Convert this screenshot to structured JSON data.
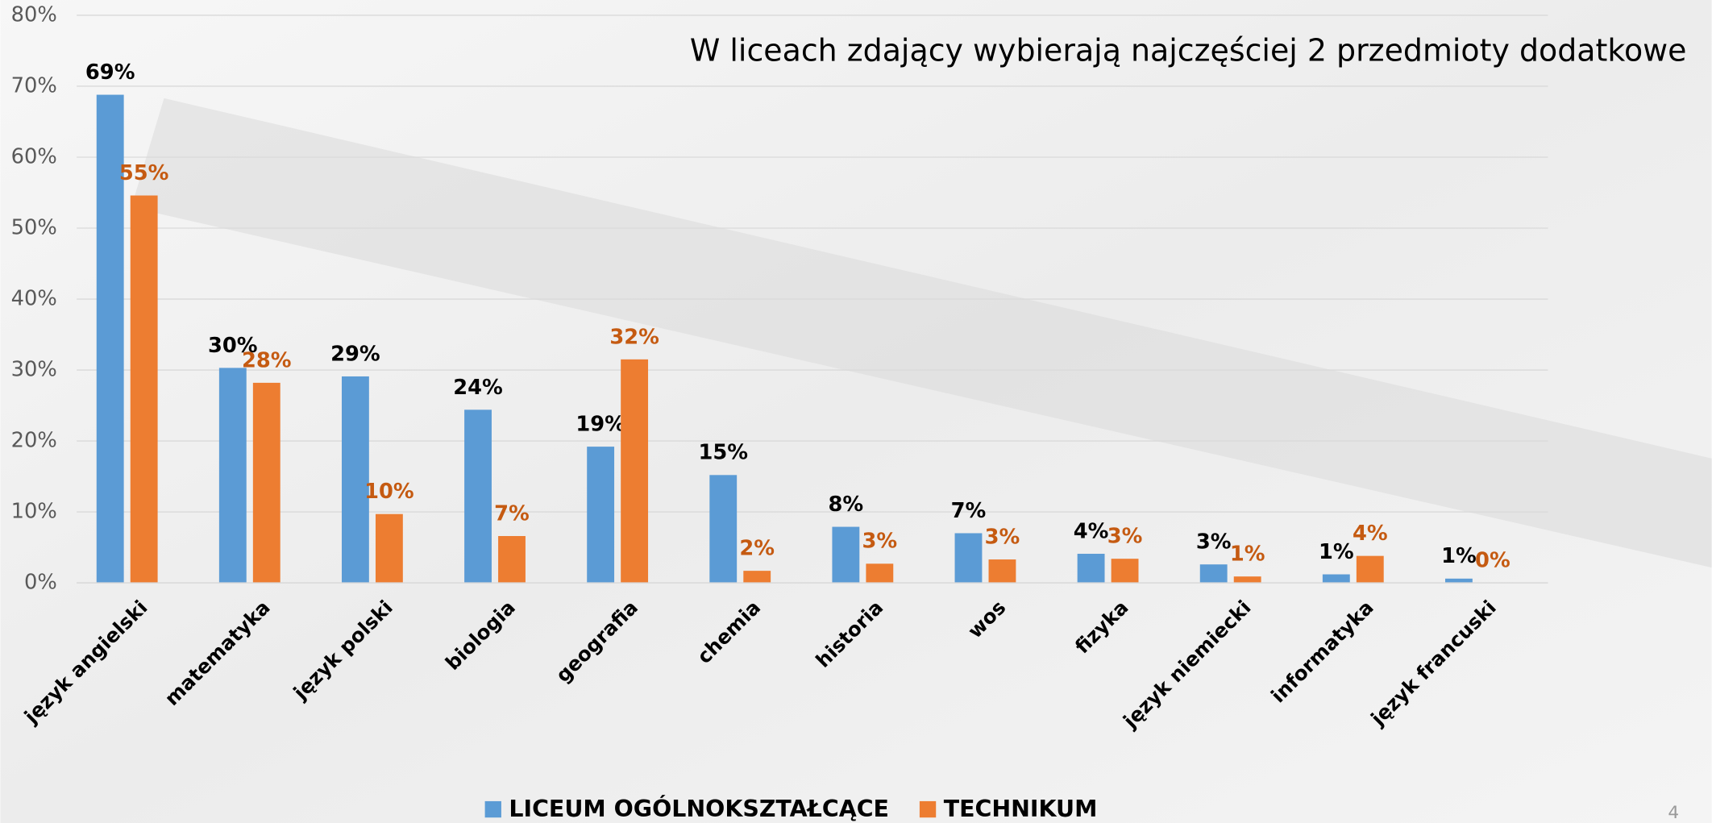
{
  "chart_data": {
    "type": "bar",
    "title": "W liceach zdający wybierają najczęściej 2 przedmioty dodatkowe",
    "categories": [
      "język angielski",
      "matematyka",
      "język polski",
      "biologia",
      "geografia",
      "chemia",
      "historia",
      "wos",
      "fizyka",
      "język niemiecki",
      "informatyka",
      "język francuski"
    ],
    "series": [
      {
        "name": "LICEUM OGÓLNOKSZTAŁCĄCE",
        "color": "#5b9bd5",
        "label_color": "#000000",
        "values": [
          68.8,
          30.3,
          29.1,
          24.4,
          19.2,
          15.2,
          7.9,
          7.0,
          4.1,
          2.6,
          1.2,
          0.6
        ],
        "value_labels": [
          "69%",
          "30%",
          "29%",
          "24%",
          "19%",
          "15%",
          "8%",
          "7%",
          "4%",
          "3%",
          "1%",
          "1%"
        ]
      },
      {
        "name": "TECHNIKUM",
        "color": "#ed7d31",
        "label_color": "#c55a11",
        "values": [
          54.6,
          28.2,
          9.7,
          6.6,
          31.5,
          1.7,
          2.7,
          3.3,
          3.4,
          0.9,
          3.8,
          0
        ],
        "value_labels": [
          "55%",
          "28%",
          "10%",
          "7%",
          "32%",
          "2%",
          "3%",
          "3%",
          "3%",
          "1%",
          "4%",
          "0%"
        ]
      }
    ],
    "ylim": [
      0,
      80
    ],
    "yticks": [
      {
        "value": 0,
        "label": "0%"
      },
      {
        "value": 10,
        "label": "10%"
      },
      {
        "value": 20,
        "label": "20%"
      },
      {
        "value": 30,
        "label": "30%"
      },
      {
        "value": 40,
        "label": "40%"
      },
      {
        "value": 50,
        "label": "50%"
      },
      {
        "value": 60,
        "label": "60%"
      },
      {
        "value": 70,
        "label": "70%"
      },
      {
        "value": 80,
        "label": "80%"
      }
    ],
    "grid": true,
    "legend": "bottom",
    "page_number": "4"
  }
}
